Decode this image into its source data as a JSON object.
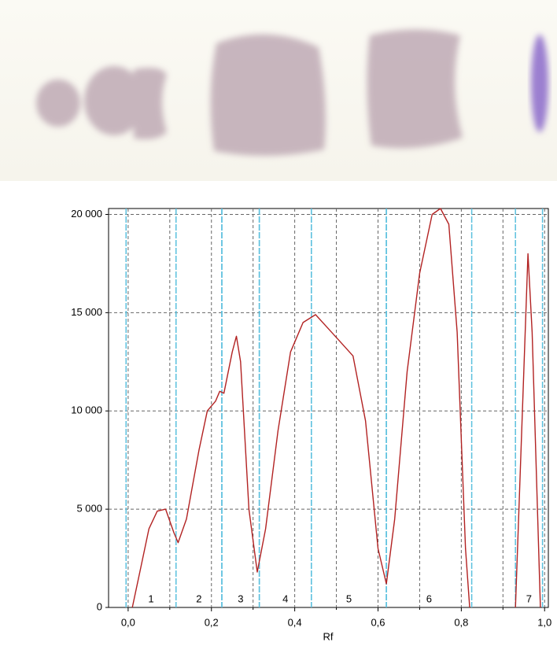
{
  "chart_data": {
    "type": "line",
    "x_label": "Rf",
    "x": [
      0.01,
      0.03,
      0.05,
      0.07,
      0.09,
      0.11,
      0.12,
      0.14,
      0.17,
      0.19,
      0.21,
      0.22,
      0.23,
      0.25,
      0.26,
      0.27,
      0.29,
      0.31,
      0.33,
      0.36,
      0.39,
      0.42,
      0.45,
      0.48,
      0.51,
      0.54,
      0.57,
      0.6,
      0.62,
      0.64,
      0.67,
      0.7,
      0.73,
      0.75,
      0.77,
      0.79,
      0.81,
      0.82,
      0.87,
      0.93,
      0.95,
      0.96,
      0.97,
      0.99
    ],
    "values": [
      0,
      2000,
      4000,
      4900,
      5000,
      3800,
      3300,
      4500,
      8000,
      10000,
      10500,
      11000,
      10900,
      13000,
      13800,
      12500,
      5000,
      1800,
      4000,
      9000,
      13000,
      14500,
      14900,
      14200,
      13500,
      12800,
      9500,
      3000,
      1200,
      4500,
      12000,
      17000,
      20000,
      20300,
      19500,
      14000,
      3000,
      0,
      null,
      0,
      12000,
      18000,
      14000,
      0
    ],
    "color": "#b22222",
    "xlim": [
      -0.047,
      1.009
    ],
    "ylim": [
      0,
      20300
    ],
    "xticks": [
      {
        "value": 0,
        "label": "0,0"
      },
      {
        "value": 0.2,
        "label": "0,2"
      },
      {
        "value": 0.4,
        "label": "0,4"
      },
      {
        "value": 0.6,
        "label": "0,6"
      },
      {
        "value": 0.8,
        "label": "0,8"
      },
      {
        "value": 1,
        "label": "1,0"
      }
    ],
    "xminorticks": [
      0.1,
      0.3,
      0.5,
      0.7,
      0.9
    ],
    "yticks": [
      0,
      {
        "value": 5000,
        "label": "5 000"
      },
      {
        "value": 10000,
        "label": "10 000"
      },
      {
        "value": 15000,
        "label": "15 000"
      },
      {
        "value": 20000,
        "label": "20 000"
      }
    ],
    "grid": true,
    "zones": [
      {
        "label": "1",
        "start": -0.005,
        "end": 0.115
      },
      {
        "label": "2",
        "start": 0.115,
        "end": 0.225
      },
      {
        "label": "3",
        "start": 0.225,
        "end": 0.315
      },
      {
        "label": "4",
        "start": 0.315,
        "end": 0.44
      },
      {
        "label": "5",
        "start": 0.44,
        "end": 0.62
      },
      {
        "label": "6",
        "start": 0.62,
        "end": 0.825
      },
      {
        "label": "7",
        "start": 0.93,
        "end": 0.995
      }
    ],
    "zone_color": "#5bc0de"
  }
}
